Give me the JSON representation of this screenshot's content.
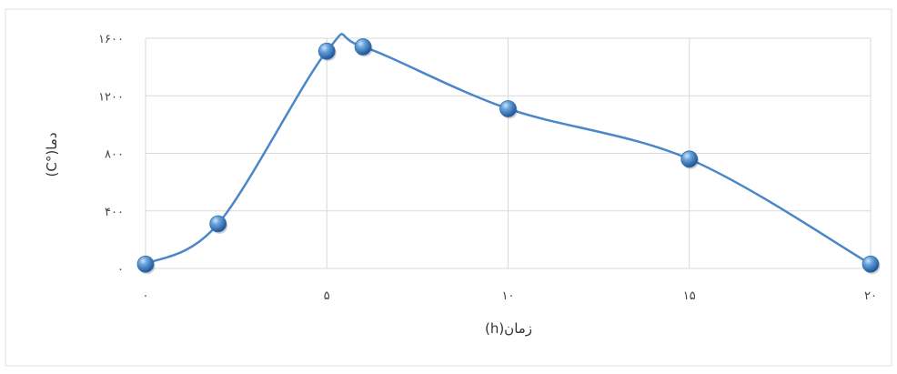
{
  "chart_data": {
    "type": "line",
    "title": "",
    "xlabel": "زمان(h)",
    "ylabel": "دما(°C)",
    "xlim": [
      0,
      20
    ],
    "ylim": [
      0,
      1600
    ],
    "x_ticks": [
      0,
      5,
      10,
      15,
      20
    ],
    "x_tick_labels": [
      "۰",
      "۵",
      "۱۰",
      "۱۵",
      "۲۰"
    ],
    "y_ticks": [
      0,
      400,
      800,
      1200,
      1600
    ],
    "y_tick_labels": [
      "۰",
      "۴۰۰",
      "۸۰۰",
      "۱۲۰۰",
      "۱۶۰۰"
    ],
    "grid": true,
    "smooth": true,
    "series": [
      {
        "x": [
          0,
          2,
          5,
          6,
          10,
          15,
          20
        ],
        "y": [
          30,
          310,
          1510,
          1540,
          1110,
          760,
          30
        ]
      }
    ],
    "colors": {
      "line": "#4a86c8",
      "marker": "#2f6fb5",
      "grid": "#d9d9d9"
    }
  }
}
